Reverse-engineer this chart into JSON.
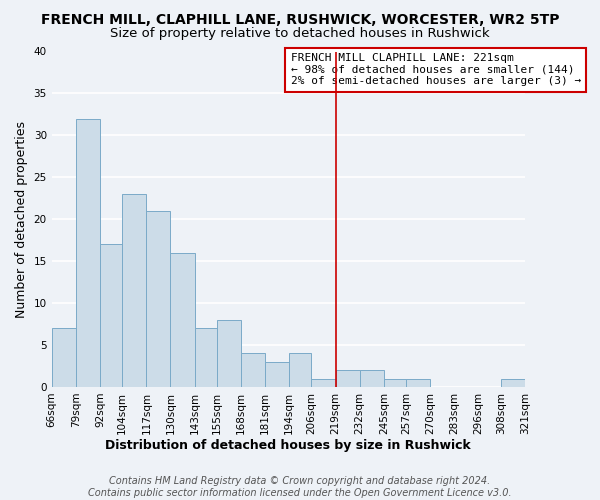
{
  "title": "FRENCH MILL, CLAPHILL LANE, RUSHWICK, WORCESTER, WR2 5TP",
  "subtitle": "Size of property relative to detached houses in Rushwick",
  "xlabel": "Distribution of detached houses by size in Rushwick",
  "ylabel": "Number of detached properties",
  "bar_color": "#ccdce8",
  "bar_edge_color": "#7aaac8",
  "bin_edges": [
    66,
    79,
    92,
    104,
    117,
    130,
    143,
    155,
    168,
    181,
    194,
    206,
    219,
    232,
    245,
    257,
    270,
    283,
    296,
    308,
    321
  ],
  "bin_labels": [
    "66sqm",
    "79sqm",
    "92sqm",
    "104sqm",
    "117sqm",
    "130sqm",
    "143sqm",
    "155sqm",
    "168sqm",
    "181sqm",
    "194sqm",
    "206sqm",
    "219sqm",
    "232sqm",
    "245sqm",
    "257sqm",
    "270sqm",
    "283sqm",
    "296sqm",
    "308sqm",
    "321sqm"
  ],
  "counts": [
    7,
    32,
    17,
    23,
    21,
    16,
    7,
    8,
    4,
    3,
    4,
    1,
    2,
    2,
    1,
    1,
    0,
    0,
    0,
    1
  ],
  "ylim": [
    0,
    40
  ],
  "yticks": [
    0,
    5,
    10,
    15,
    20,
    25,
    30,
    35,
    40
  ],
  "vline_x": 219,
  "vline_color": "#cc0000",
  "annotation_title": "FRENCH MILL CLAPHILL LANE: 221sqm",
  "annotation_line1": "← 98% of detached houses are smaller (144)",
  "annotation_line2": "2% of semi-detached houses are larger (3) →",
  "footer1": "Contains HM Land Registry data © Crown copyright and database right 2024.",
  "footer2": "Contains public sector information licensed under the Open Government Licence v3.0.",
  "background_color": "#eef2f7",
  "grid_color": "#ffffff",
  "title_fontsize": 10,
  "subtitle_fontsize": 9.5,
  "axis_label_fontsize": 9,
  "tick_fontsize": 7.5,
  "annotation_fontsize": 8,
  "footer_fontsize": 7
}
